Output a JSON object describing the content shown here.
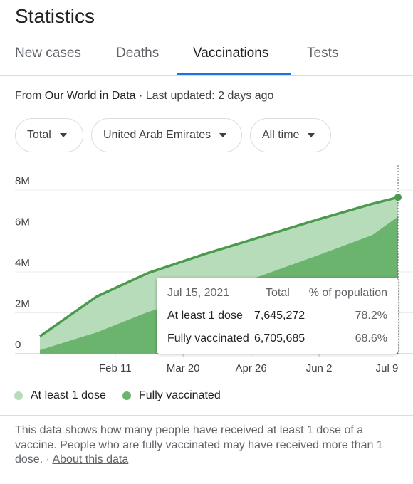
{
  "header": {
    "title": "Statistics"
  },
  "tabs": [
    {
      "label": "New cases"
    },
    {
      "label": "Deaths"
    },
    {
      "label": "Vaccinations",
      "active": true
    },
    {
      "label": "Tests"
    }
  ],
  "source": {
    "prefix": "From ",
    "link": "Our World in Data",
    "updated": " · Last updated: 2 days ago"
  },
  "filters": [
    {
      "label": "Total"
    },
    {
      "label": "United Arab Emirates"
    },
    {
      "label": "All time"
    }
  ],
  "chart_data": {
    "type": "area",
    "y_ticks": [
      "8M",
      "6M",
      "4M",
      "2M",
      "0"
    ],
    "x_ticks": [
      "Feb 11",
      "Mar 20",
      "Apr 26",
      "Jun 2",
      "Jul 9"
    ],
    "ylim": [
      0,
      9000000
    ],
    "x_dates": [
      "Jan 1",
      "Feb 1",
      "Mar 1",
      "Apr 1",
      "May 1",
      "Jun 1",
      "Jul 1",
      "Jul 15"
    ],
    "series": [
      {
        "name": "At least 1 dose",
        "color": "#b7dcb9",
        "values": [
          480000,
          2220000,
          3150000,
          4020000,
          4850000,
          5700000,
          6700000,
          7645272
        ]
      },
      {
        "name": "Fully vaccinated",
        "color": "#6ab46e",
        "values": [
          180000,
          1050000,
          2050000,
          2900000,
          3800000,
          4800000,
          5800000,
          6705685
        ]
      }
    ],
    "total_line": {
      "color": "#4a9a4e",
      "values": [
        850000,
        2800000,
        3950000,
        4880000,
        5700000,
        6550000,
        7330000,
        7645272
      ]
    },
    "grid": true
  },
  "tooltip": {
    "date": "Jul 15, 2021",
    "col_total": "Total",
    "col_pct": "% of population",
    "rows": [
      {
        "label": "At least 1 dose",
        "total": "7,645,272",
        "pct": "78.2%"
      },
      {
        "label": "Fully vaccinated",
        "total": "6,705,685",
        "pct": "68.6%"
      }
    ]
  },
  "legend": [
    {
      "label": "At least 1 dose",
      "color": "#b7dcb9"
    },
    {
      "label": "Fully vaccinated",
      "color": "#6ab46e"
    }
  ],
  "footer": {
    "text": "This data shows how many people have received at least 1 dose of a vaccine. People who are fully vaccinated may have received more than 1 dose.",
    "separator": " · ",
    "link": "About this data"
  }
}
